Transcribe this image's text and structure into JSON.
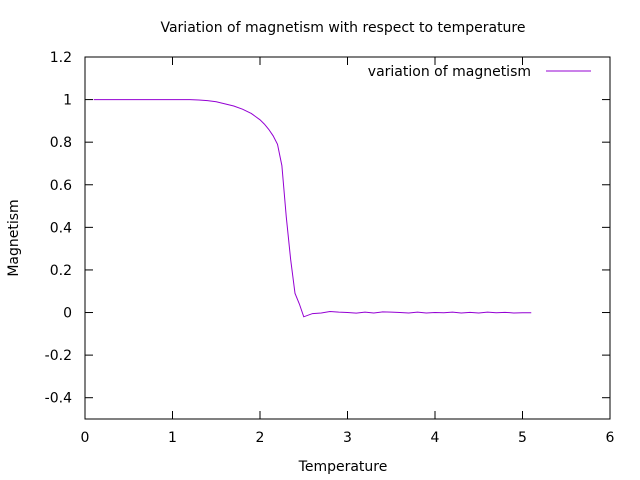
{
  "chart_data": {
    "type": "line",
    "title": "Variation of magnetism with respect to temperature",
    "xlabel": "Temperature",
    "ylabel": "Magnetism",
    "xlim": [
      0,
      6
    ],
    "ylim": [
      -0.5,
      1.2
    ],
    "xticks": [
      0,
      1,
      2,
      3,
      4,
      5,
      6
    ],
    "yticks": [
      -0.4,
      -0.2,
      0,
      0.2,
      0.4,
      0.6,
      0.8,
      1,
      1.2
    ],
    "ytick_labels": [
      "-0.4",
      "-0.2",
      "0",
      "0.2",
      "0.4",
      "0.6",
      "0.8",
      "1",
      "1.2"
    ],
    "xtick_labels": [
      "0",
      "1",
      "2",
      "3",
      "4",
      "5",
      "6"
    ],
    "grid": false,
    "legend": "top-right",
    "series": [
      {
        "name": "variation of magnetism",
        "color": "#9400d3",
        "x": [
          0.1,
          0.2,
          0.3,
          0.4,
          0.5,
          0.6,
          0.7,
          0.8,
          0.9,
          1.0,
          1.1,
          1.2,
          1.3,
          1.4,
          1.5,
          1.6,
          1.7,
          1.8,
          1.9,
          2.0,
          2.05,
          2.1,
          2.15,
          2.2,
          2.25,
          2.3,
          2.35,
          2.4,
          2.45,
          2.5,
          2.6,
          2.7,
          2.8,
          2.9,
          3.0,
          3.1,
          3.2,
          3.3,
          3.4,
          3.5,
          3.6,
          3.7,
          3.8,
          3.9,
          4.0,
          4.1,
          4.2,
          4.3,
          4.4,
          4.5,
          4.6,
          4.7,
          4.8,
          4.9,
          5.0,
          5.1
        ],
        "y": [
          1.0,
          1.0,
          1.0,
          1.0,
          1.0,
          1.0,
          1.0,
          1.0,
          1.0,
          1.0,
          1.0,
          1.0,
          0.998,
          0.995,
          0.99,
          0.98,
          0.97,
          0.955,
          0.935,
          0.905,
          0.885,
          0.86,
          0.83,
          0.79,
          0.69,
          0.45,
          0.25,
          0.09,
          0.04,
          -0.02,
          -0.005,
          -0.002,
          0.005,
          0.002,
          0.0,
          -0.003,
          0.002,
          -0.002,
          0.003,
          0.002,
          0.0,
          -0.002,
          0.002,
          -0.002,
          0.0,
          -0.001,
          0.002,
          -0.002,
          0.001,
          -0.002,
          0.002,
          -0.001,
          0.001,
          -0.002,
          -0.001,
          -0.001
        ]
      }
    ]
  }
}
